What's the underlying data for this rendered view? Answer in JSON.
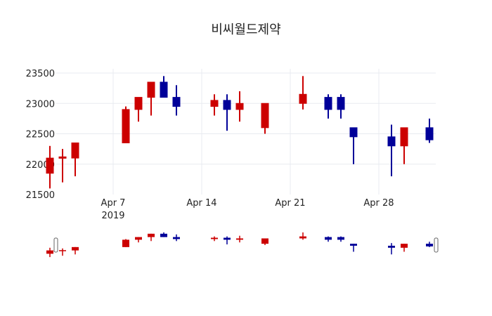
{
  "chart_data": {
    "type": "candlestick",
    "title": "비씨월드제약",
    "xlabel": "",
    "ylabel": "",
    "ylim": [
      21500,
      23500
    ],
    "yticks": [
      21500,
      22000,
      22500,
      23000,
      23500
    ],
    "xticks": [
      {
        "label": "Apr 7",
        "sublabel": "2019",
        "date": "2019-04-07"
      },
      {
        "label": "Apr 14",
        "sublabel": "",
        "date": "2019-04-14"
      },
      {
        "label": "Apr 21",
        "sublabel": "",
        "date": "2019-04-21"
      },
      {
        "label": "Apr 28",
        "sublabel": "",
        "date": "2019-04-28"
      }
    ],
    "grid": true,
    "increasing_color": "#cc0000",
    "decreasing_color": "#000099",
    "rangeslider": true,
    "candles": [
      {
        "date": "2019-04-02",
        "open": 21850,
        "high": 22300,
        "low": 21600,
        "close": 22100
      },
      {
        "date": "2019-04-03",
        "open": 22100,
        "high": 22250,
        "low": 21700,
        "close": 22120
      },
      {
        "date": "2019-04-04",
        "open": 22100,
        "high": 22350,
        "low": 21800,
        "close": 22350
      },
      {
        "date": "2019-04-08",
        "open": 22350,
        "high": 22950,
        "low": 22350,
        "close": 22900
      },
      {
        "date": "2019-04-09",
        "open": 22900,
        "high": 23100,
        "low": 22700,
        "close": 23100
      },
      {
        "date": "2019-04-10",
        "open": 23100,
        "high": 23350,
        "low": 22800,
        "close": 23350
      },
      {
        "date": "2019-04-11",
        "open": 23350,
        "high": 23450,
        "low": 23100,
        "close": 23100
      },
      {
        "date": "2019-04-12",
        "open": 23100,
        "high": 23300,
        "low": 22800,
        "close": 22950
      },
      {
        "date": "2019-04-15",
        "open": 22950,
        "high": 23150,
        "low": 22800,
        "close": 23050
      },
      {
        "date": "2019-04-16",
        "open": 23050,
        "high": 23150,
        "low": 22550,
        "close": 22900
      },
      {
        "date": "2019-04-17",
        "open": 22900,
        "high": 23200,
        "low": 22700,
        "close": 23000
      },
      {
        "date": "2019-04-19",
        "open": 22600,
        "high": 23000,
        "low": 22500,
        "close": 23000
      },
      {
        "date": "2019-04-22",
        "open": 23000,
        "high": 23450,
        "low": 22900,
        "close": 23150
      },
      {
        "date": "2019-04-24",
        "open": 23100,
        "high": 23150,
        "low": 22750,
        "close": 22900
      },
      {
        "date": "2019-04-25",
        "open": 23100,
        "high": 23150,
        "low": 22750,
        "close": 22900
      },
      {
        "date": "2019-04-26",
        "open": 22600,
        "high": 22600,
        "low": 22000,
        "close": 22450
      },
      {
        "date": "2019-04-29",
        "open": 22450,
        "high": 22650,
        "low": 21800,
        "close": 22300
      },
      {
        "date": "2019-04-30",
        "open": 22300,
        "high": 22600,
        "low": 22000,
        "close": 22600
      },
      {
        "date": "2019-05-02",
        "open": 22600,
        "high": 22750,
        "low": 22350,
        "close": 22400
      }
    ]
  }
}
